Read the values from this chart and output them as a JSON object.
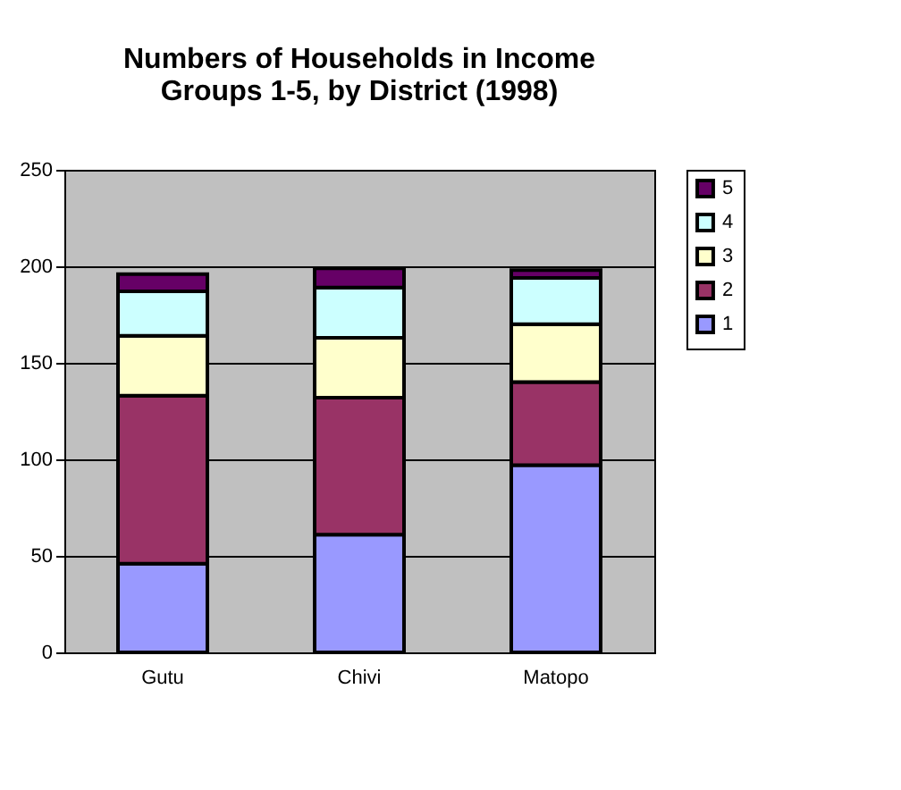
{
  "chart_data": {
    "type": "bar",
    "title": "Numbers of Households in Income Groups 1-5, by District (1998)",
    "stacked": true,
    "categories": [
      "Gutu",
      "Chivi",
      "Matopo"
    ],
    "series": [
      {
        "name": "1",
        "color": "#9999ff",
        "values": [
          46,
          61,
          97
        ]
      },
      {
        "name": "2",
        "color": "#993366",
        "values": [
          87,
          71,
          43
        ]
      },
      {
        "name": "3",
        "color": "#ffffcc",
        "values": [
          31,
          31,
          30
        ]
      },
      {
        "name": "4",
        "color": "#ccffff",
        "values": [
          23,
          26,
          24
        ]
      },
      {
        "name": "5",
        "color": "#660066",
        "values": [
          9,
          10,
          4
        ]
      }
    ],
    "ylim": [
      0,
      250
    ],
    "yticks": [
      0,
      50,
      100,
      150,
      200,
      250
    ],
    "grid": "y",
    "legend": "right"
  }
}
